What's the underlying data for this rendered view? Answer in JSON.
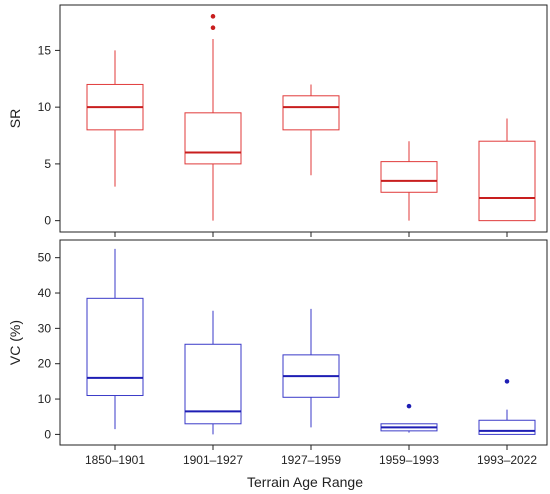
{
  "chart_data": {
    "type": "box",
    "xlabel": "Terrain Age Range",
    "categories": [
      "1850–1901",
      "1901–1927",
      "1927–1959",
      "1959–1993",
      "1993–2022"
    ],
    "panels": [
      {
        "ylabel": "SR",
        "color": "#e03a3a",
        "median_color": "#c81e1e",
        "outlier_color": "#c81e1e",
        "ylim": [
          -1,
          19
        ],
        "yticks": [
          0,
          5,
          10,
          15
        ],
        "boxes": [
          {
            "category": "1850–1901",
            "min": 3,
            "q1": 8,
            "median": 10,
            "q3": 12,
            "max": 15,
            "outliers": []
          },
          {
            "category": "1901–1927",
            "min": 0,
            "q1": 5,
            "median": 6,
            "q3": 9.5,
            "max": 16,
            "outliers": [
              17,
              18
            ]
          },
          {
            "category": "1927–1959",
            "min": 4,
            "q1": 8,
            "median": 10,
            "q3": 11,
            "max": 12,
            "outliers": []
          },
          {
            "category": "1959–1993",
            "min": 0,
            "q1": 2.5,
            "median": 3.5,
            "q3": 5.2,
            "max": 7,
            "outliers": []
          },
          {
            "category": "1993–2022",
            "min": 0,
            "q1": 0,
            "median": 2,
            "q3": 7,
            "max": 9,
            "outliers": []
          }
        ]
      },
      {
        "ylabel": "VC (%)",
        "color": "#3a3ac8",
        "median_color": "#1e1eb4",
        "outlier_color": "#1e1eb4",
        "ylim": [
          -3,
          55
        ],
        "yticks": [
          0,
          10,
          20,
          30,
          40,
          50
        ],
        "boxes": [
          {
            "category": "1850–1901",
            "min": 1.5,
            "q1": 11,
            "median": 16,
            "q3": 38.5,
            "max": 52.5,
            "outliers": []
          },
          {
            "category": "1901–1927",
            "min": 0,
            "q1": 3,
            "median": 6.5,
            "q3": 25.5,
            "max": 35,
            "outliers": []
          },
          {
            "category": "1927–1959",
            "min": 2,
            "q1": 10.5,
            "median": 16.5,
            "q3": 22.5,
            "max": 35.5,
            "outliers": []
          },
          {
            "category": "1959–1993",
            "min": 0.5,
            "q1": 1,
            "median": 2,
            "q3": 3,
            "max": 3,
            "outliers": [
              8
            ]
          },
          {
            "category": "1993–2022",
            "min": 0,
            "q1": 0,
            "median": 1,
            "q3": 4,
            "max": 7,
            "outliers": [
              15
            ]
          }
        ]
      }
    ]
  }
}
